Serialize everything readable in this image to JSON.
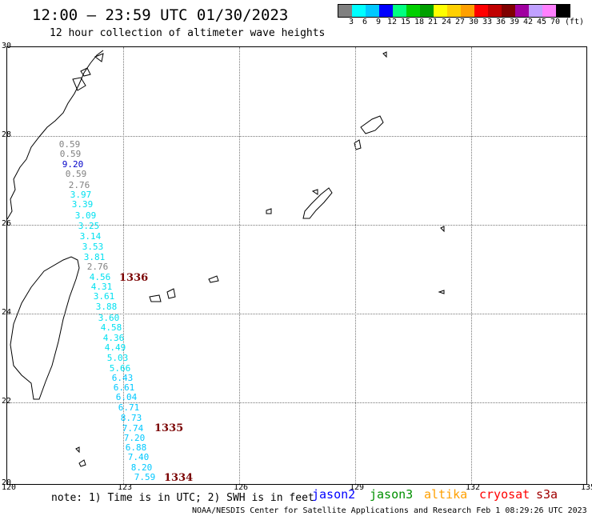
{
  "title": "12:00 – 23:59 UTC 01/30/2023",
  "subtitle": "12 hour collection of altimeter wave heights",
  "colorbar": {
    "unit": "(ft)",
    "colors": [
      "#808080",
      "#00ffff",
      "#00c8ff",
      "#0000ff",
      "#00ff80",
      "#00d000",
      "#00a000",
      "#ffff00",
      "#ffd000",
      "#ffa000",
      "#ff0000",
      "#c00000",
      "#800000",
      "#a000a0",
      "#c0a0ff",
      "#ff80ff",
      "#000000"
    ],
    "labels": [
      "3",
      "6",
      "9",
      "12",
      "15",
      "18",
      "21",
      "24",
      "27",
      "30",
      "33",
      "36",
      "39",
      "42",
      "45",
      "70"
    ]
  },
  "map": {
    "lat_labels": [
      "30",
      "28",
      "26",
      "24",
      "22",
      "20"
    ],
    "lon_labels": [
      "120",
      "123",
      "126",
      "129",
      "132",
      "135"
    ]
  },
  "observations": [
    {
      "v": "0.59",
      "color": "#808080"
    },
    {
      "v": "0.59",
      "color": "#808080"
    },
    {
      "v": "9.20",
      "color": "#0000c8"
    },
    {
      "v": "0.59",
      "color": "#808080"
    },
    {
      "v": "2.76",
      "color": "#808080"
    },
    {
      "v": "3.97",
      "color": "#00e0f0"
    },
    {
      "v": "3.39",
      "color": "#00e0f0"
    },
    {
      "v": "3.09",
      "color": "#00e0f0"
    },
    {
      "v": "3.25",
      "color": "#00e0f0"
    },
    {
      "v": "3.14",
      "color": "#00e0f0"
    },
    {
      "v": "3.53",
      "color": "#00e0f0"
    },
    {
      "v": "3.81",
      "color": "#00e0f0"
    },
    {
      "v": "2.76",
      "color": "#808080"
    },
    {
      "v": "4.56",
      "color": "#00e0f0"
    },
    {
      "v": "4.31",
      "color": "#00e0f0"
    },
    {
      "v": "3.61",
      "color": "#00e0f0"
    },
    {
      "v": "3.88",
      "color": "#00e0f0"
    },
    {
      "v": "3.60",
      "color": "#00e0f0"
    },
    {
      "v": "4.58",
      "color": "#00e0f0"
    },
    {
      "v": "4.36",
      "color": "#00e0f0"
    },
    {
      "v": "4.49",
      "color": "#00e0f0"
    },
    {
      "v": "5.03",
      "color": "#00e0f0"
    },
    {
      "v": "5.66",
      "color": "#00e0f0"
    },
    {
      "v": "6.43",
      "color": "#00c8ff"
    },
    {
      "v": "6.61",
      "color": "#00c8ff"
    },
    {
      "v": "6.04",
      "color": "#00c8ff"
    },
    {
      "v": "6.71",
      "color": "#00c8ff"
    },
    {
      "v": "8.73",
      "color": "#00c8ff"
    },
    {
      "v": "7.74",
      "color": "#00c8ff"
    },
    {
      "v": "7.20",
      "color": "#00c8ff"
    },
    {
      "v": "6.88",
      "color": "#00c8ff"
    },
    {
      "v": "7.40",
      "color": "#00c8ff"
    },
    {
      "v": "8.20",
      "color": "#00c8ff"
    },
    {
      "v": "7.59",
      "color": "#00c8ff"
    }
  ],
  "passes": [
    {
      "label": "1336"
    },
    {
      "label": "1335"
    },
    {
      "label": "1334"
    }
  ],
  "note": "note: 1) Time is in UTC; 2) SWH is in feet",
  "satellites": [
    {
      "name": "jason2",
      "color": "#0000ff"
    },
    {
      "name": "jason3",
      "color": "#009000"
    },
    {
      "name": "altika",
      "color": "#ffa000"
    },
    {
      "name": "cryosat",
      "color": "#ff0000"
    },
    {
      "name": "s3a",
      "color": "#a00000"
    }
  ],
  "credit": "NOAA/NESDIS Center for Satellite Applications and Research   Feb  1 08:29:26 UTC 2023"
}
